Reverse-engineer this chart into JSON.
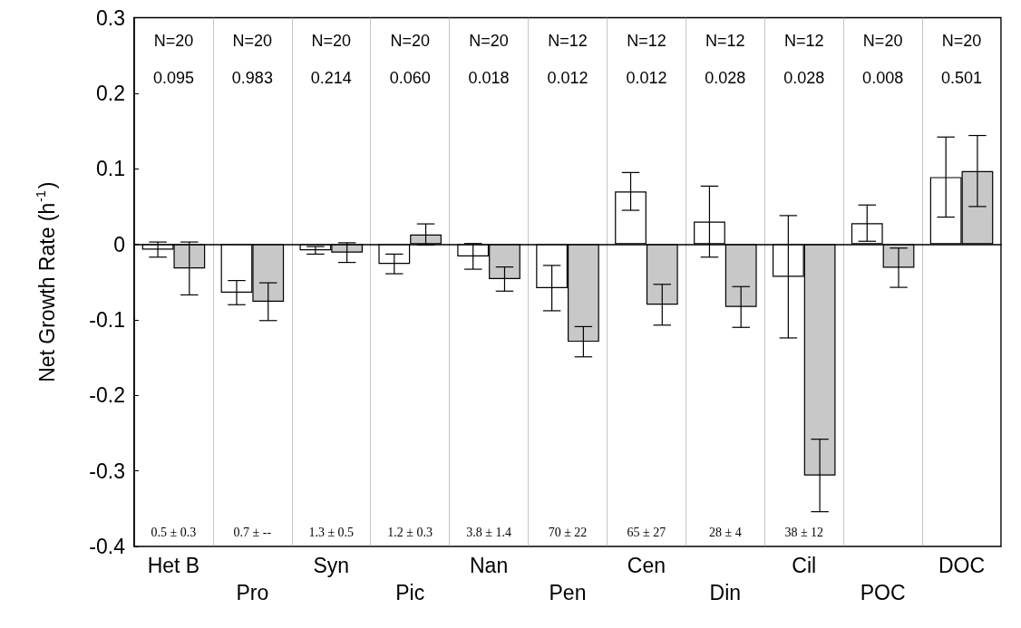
{
  "chart_data": {
    "type": "bar",
    "ylabel": "Net Growth Rate (h$^{-1}$)",
    "categories": [
      "Het B",
      "Pro",
      "Syn",
      "Pic",
      "Nan",
      "Pen",
      "Cen",
      "Din",
      "Cil",
      "POC",
      "DOC"
    ],
    "series": [
      {
        "color": "#ffffff",
        "values": [
          -0.007,
          -0.064,
          -0.008,
          -0.026,
          -0.016,
          -0.058,
          0.07,
          0.03,
          -0.043,
          0.028,
          0.089
        ],
        "errors": [
          0.01,
          0.016,
          0.005,
          0.013,
          0.017,
          0.03,
          0.025,
          0.047,
          0.081,
          0.024,
          0.053
        ]
      },
      {
        "color": "#c8c8c8",
        "values": [
          -0.032,
          -0.076,
          -0.011,
          0.013,
          -0.046,
          -0.129,
          -0.08,
          -0.083,
          -0.306,
          -0.031,
          0.097
        ],
        "errors": [
          0.035,
          0.025,
          0.013,
          0.014,
          0.016,
          0.02,
          0.027,
          0.027,
          0.048,
          0.026,
          0.047
        ]
      }
    ],
    "ylim": [
      -0.4,
      0.3
    ],
    "yticks": [
      -0.4,
      -0.3,
      -0.2,
      -0.1,
      0,
      0.1,
      0.2,
      0.3
    ],
    "grid": "x",
    "annotations": [
      "N=20",
      "N=20",
      "N=20",
      "N=20",
      "N=20",
      "N=12",
      "N=12",
      "N=12",
      "N=12",
      "N=20",
      "N=20",
      "0.095",
      "0.983",
      "0.214",
      "0.060",
      "0.018",
      "0.012",
      "0.012",
      "0.028",
      "0.028",
      "0.008",
      "0.501",
      "0.5 ± 0.3",
      "0.7 ± --",
      "1.3 ± 0.5",
      "1.2 ± 0.3",
      "3.8 ± 1.4",
      "70 ± 22",
      "65 ± 27",
      "28 ± 4",
      "38 ± 12"
    ]
  }
}
